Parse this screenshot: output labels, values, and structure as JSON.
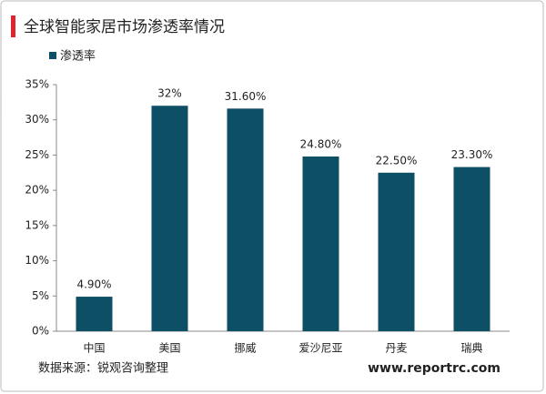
{
  "chart_data": {
    "type": "bar",
    "title": "全球智能家居市场渗透率情况",
    "categories": [
      "中国",
      "美国",
      "挪威",
      "爱沙尼亚",
      "丹麦",
      "瑞典"
    ],
    "series": [
      {
        "name": "渗透率",
        "color": "#0d4f64",
        "values": [
          4.9,
          32,
          31.6,
          24.8,
          22.5,
          23.3
        ],
        "value_labels": [
          "4.90%",
          "32%",
          "31.60%",
          "24.80%",
          "22.50%",
          "23.30%"
        ]
      }
    ],
    "ylim": [
      0,
      35
    ],
    "yticks": [
      {
        "value": 0,
        "label": "0%"
      },
      {
        "value": 5,
        "label": "5%"
      },
      {
        "value": 10,
        "label": "10%"
      },
      {
        "value": 15,
        "label": "15%"
      },
      {
        "value": 20,
        "label": "20%"
      },
      {
        "value": 25,
        "label": "25%"
      },
      {
        "value": 30,
        "label": "30%"
      },
      {
        "value": 35,
        "label": "35%"
      }
    ],
    "grid": false,
    "source": "数据来源：锐观咨询整理",
    "watermark": "www.reportrc.com"
  }
}
